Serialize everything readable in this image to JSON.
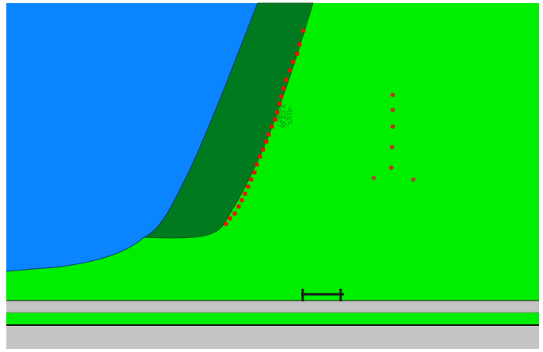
{
  "scene": {
    "background_color": "#ffffff",
    "colors": {
      "water": "#0a84ff",
      "grass": "#00ee00",
      "bank": "#007a1f",
      "bank_stroke": "#0a5a1a",
      "road": "#c4c4c4",
      "road_edge": "#1a1a1a",
      "marker_red": "#ee1100",
      "marker_dark_red": "#c0302a",
      "marker_brown": "#a05030",
      "scrub": "#0d7a22",
      "tool": "#1a1a1a"
    },
    "layers": [
      {
        "name": "water-area",
        "kind": "water"
      },
      {
        "name": "riverbank-strip",
        "kind": "vegetation"
      },
      {
        "name": "grass-field",
        "kind": "land"
      },
      {
        "name": "shoreline-markers",
        "kind": "markers",
        "count": 26
      },
      {
        "name": "inland-marker-column",
        "kind": "markers",
        "count": 7
      },
      {
        "name": "scrub-patch",
        "kind": "vegetation"
      },
      {
        "name": "road-upper",
        "kind": "road"
      },
      {
        "name": "grass-median",
        "kind": "land"
      },
      {
        "name": "road-lower",
        "kind": "road"
      },
      {
        "name": "measure-tool",
        "kind": "tool"
      }
    ]
  }
}
